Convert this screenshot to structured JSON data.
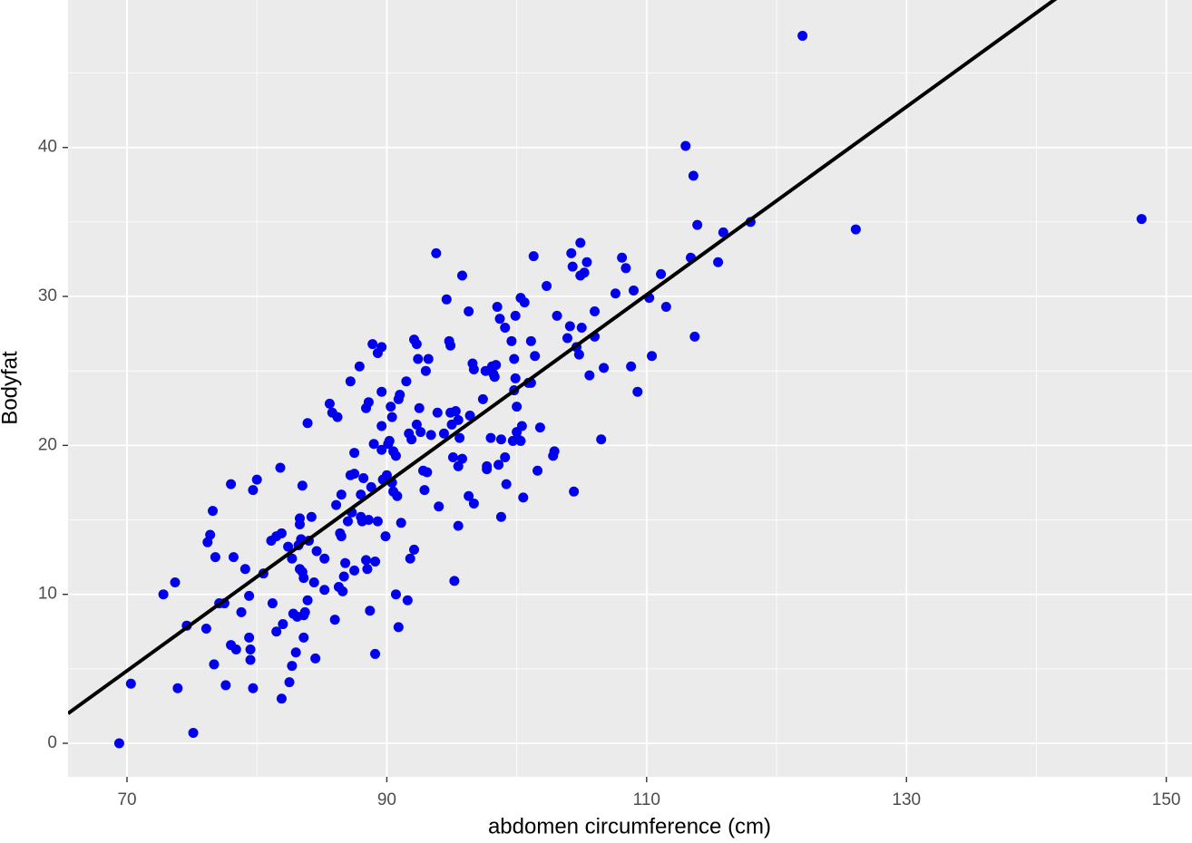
{
  "chart_data": {
    "type": "scatter",
    "x_label": "abdomen circumference (cm)",
    "y_label": "Bodyfat",
    "xlim": [
      65.46,
      151.98
    ],
    "ylim": [
      -2.25,
      49.9
    ],
    "xticks": [
      70,
      90,
      110,
      130,
      150
    ],
    "yticks": [
      0,
      10,
      20,
      30,
      40
    ],
    "minor_xticks": [
      80,
      100,
      120,
      140
    ],
    "minor_yticks": [
      5,
      15,
      25,
      35,
      45
    ],
    "grid": true,
    "color": "#0000ee",
    "fit": {
      "slope": 0.631,
      "intercept": -39.3,
      "color": "#000000"
    },
    "x": [
      69.4,
      70.3,
      72.8,
      73.7,
      73.9,
      74.6,
      75.1,
      76.1,
      76.2,
      76.4,
      76.6,
      76.7,
      76.8,
      77.1,
      77.5,
      77.6,
      78.0,
      78.0,
      78.2,
      78.4,
      78.8,
      79.1,
      79.4,
      79.4,
      79.5,
      79.5,
      79.7,
      79.7,
      80.0,
      80.5,
      81.1,
      81.2,
      81.5,
      81.5,
      81.8,
      81.9,
      81.9,
      82.0,
      82.4,
      82.5,
      82.7,
      82.7,
      82.8,
      83.0,
      83.1,
      83.2,
      83.3,
      83.3,
      83.3,
      83.4,
      83.5,
      83.5,
      83.6,
      83.6,
      83.6,
      83.7,
      83.9,
      83.9,
      84.0,
      84.2,
      84.4,
      84.5,
      84.6,
      85.2,
      85.2,
      85.6,
      85.8,
      86.0,
      86.1,
      86.2,
      86.3,
      86.4,
      86.5,
      86.5,
      86.6,
      86.7,
      86.8,
      87.0,
      87.2,
      87.2,
      87.3,
      87.5,
      87.5,
      87.5,
      87.9,
      88.0,
      88.0,
      88.1,
      88.2,
      88.4,
      88.4,
      88.5,
      88.6,
      88.6,
      88.7,
      88.8,
      88.9,
      89.0,
      89.1,
      89.1,
      89.3,
      89.3,
      89.6,
      89.6,
      89.6,
      89.6,
      89.7,
      89.9,
      90.0,
      90.1,
      90.2,
      90.3,
      90.4,
      90.4,
      90.5,
      90.5,
      90.7,
      90.7,
      90.8,
      90.9,
      90.9,
      91.0,
      91.1,
      91.5,
      91.6,
      91.7,
      91.8,
      91.9,
      92.1,
      92.1,
      92.3,
      92.3,
      92.4,
      92.5,
      92.6,
      92.8,
      92.9,
      93.0,
      93.1,
      93.2,
      93.4,
      93.8,
      93.9,
      94.0,
      94.4,
      94.6,
      94.8,
      94.9,
      94.9,
      95.0,
      95.1,
      95.2,
      95.3,
      95.5,
      95.5,
      95.5,
      95.6,
      95.8,
      95.8,
      96.3,
      96.3,
      96.4,
      96.6,
      96.7,
      96.7,
      97.4,
      97.6,
      97.7,
      97.7,
      98.0,
      98.1,
      98.2,
      98.3,
      98.4,
      98.5,
      98.6,
      98.7,
      98.8,
      98.8,
      99.1,
      99.1,
      99.2,
      99.6,
      99.7,
      99.8,
      99.8,
      99.9,
      99.9,
      100.0,
      100.0,
      100.1,
      100.3,
      100.3,
      100.4,
      100.5,
      100.6,
      100.9,
      101.1,
      101.1,
      101.3,
      101.4,
      101.6,
      101.8,
      102.3,
      102.8,
      102.9,
      103.1,
      103.9,
      104.1,
      104.2,
      104.3,
      104.4,
      104.6,
      104.8,
      104.9,
      104.9,
      105.0,
      105.2,
      105.4,
      105.6,
      106.0,
      106.0,
      106.5,
      106.7,
      107.6,
      108.1,
      108.4,
      108.8,
      109.0,
      109.3,
      110.2,
      110.4,
      111.1,
      111.5,
      113.0,
      113.4,
      113.6,
      113.7,
      113.9,
      115.5,
      115.9,
      118.0,
      122.0,
      126.1,
      148.1
    ],
    "y": [
      0,
      4.0,
      10.0,
      10.8,
      3.7,
      7.9,
      0.7,
      7.7,
      13.5,
      14.0,
      15.6,
      5.3,
      12.5,
      9.4,
      9.4,
      3.9,
      6.6,
      17.4,
      12.5,
      6.3,
      8.8,
      11.7,
      9.9,
      7.1,
      6.3,
      5.6,
      17.0,
      3.7,
      17.7,
      11.4,
      13.6,
      9.4,
      13.9,
      7.5,
      18.5,
      3.0,
      14.1,
      8.0,
      13.2,
      4.1,
      12.4,
      5.2,
      8.7,
      6.1,
      8.5,
      13.3,
      14.7,
      11.7,
      15.1,
      13.7,
      17.3,
      11.5,
      11.1,
      7.1,
      8.6,
      8.8,
      9.6,
      21.5,
      13.6,
      15.2,
      10.8,
      5.7,
      12.9,
      12.4,
      10.3,
      22.8,
      22.2,
      8.3,
      16.0,
      21.9,
      10.5,
      14.1,
      16.7,
      13.9,
      10.2,
      11.2,
      12.1,
      14.9,
      24.3,
      18.0,
      15.5,
      18.1,
      11.6,
      19.5,
      25.3,
      16.7,
      15.2,
      14.9,
      17.8,
      12.3,
      22.5,
      11.7,
      15.0,
      22.9,
      8.9,
      17.2,
      26.8,
      20.1,
      6.0,
      12.2,
      14.9,
      26.2,
      26.6,
      21.3,
      19.7,
      23.6,
      17.7,
      13.9,
      18.0,
      20.1,
      20.3,
      22.6,
      21.9,
      17.5,
      19.6,
      16.9,
      19.3,
      10.0,
      16.6,
      23.1,
      7.8,
      23.4,
      14.8,
      24.3,
      9.6,
      20.8,
      12.4,
      20.4,
      27.1,
      13.0,
      21.4,
      26.8,
      25.8,
      22.5,
      20.9,
      18.3,
      17.0,
      25.0,
      18.2,
      25.8,
      20.7,
      32.9,
      22.2,
      15.9,
      20.8,
      29.8,
      27.0,
      26.7,
      22.2,
      21.4,
      19.2,
      10.9,
      22.3,
      21.7,
      18.6,
      14.6,
      20.5,
      31.4,
      19.1,
      16.6,
      29.0,
      22.0,
      25.5,
      16.1,
      25.1,
      23.1,
      25.0,
      18.6,
      18.4,
      20.5,
      25.3,
      24.8,
      24.6,
      25.4,
      29.3,
      18.7,
      28.5,
      15.2,
      20.4,
      19.2,
      27.9,
      17.4,
      27.0,
      20.3,
      25.8,
      23.7,
      28.7,
      24.5,
      22.6,
      20.9,
      20.4,
      29.9,
      20.3,
      21.3,
      16.5,
      29.6,
      24.2,
      27.0,
      24.2,
      32.7,
      26.0,
      18.3,
      21.2,
      30.7,
      19.3,
      19.6,
      28.7,
      27.2,
      28.0,
      32.9,
      32.0,
      16.9,
      26.6,
      26.1,
      33.6,
      31.4,
      27.9,
      31.6,
      32.3,
      24.7,
      27.3,
      29.0,
      20.4,
      25.2,
      30.2,
      32.6,
      31.9,
      25.3,
      30.4,
      23.6,
      29.9,
      26.0,
      31.5,
      29.3,
      40.1,
      32.6,
      38.1,
      27.3,
      34.8,
      32.3,
      34.3,
      35.0,
      47.5,
      34.5,
      35.2
    ]
  }
}
